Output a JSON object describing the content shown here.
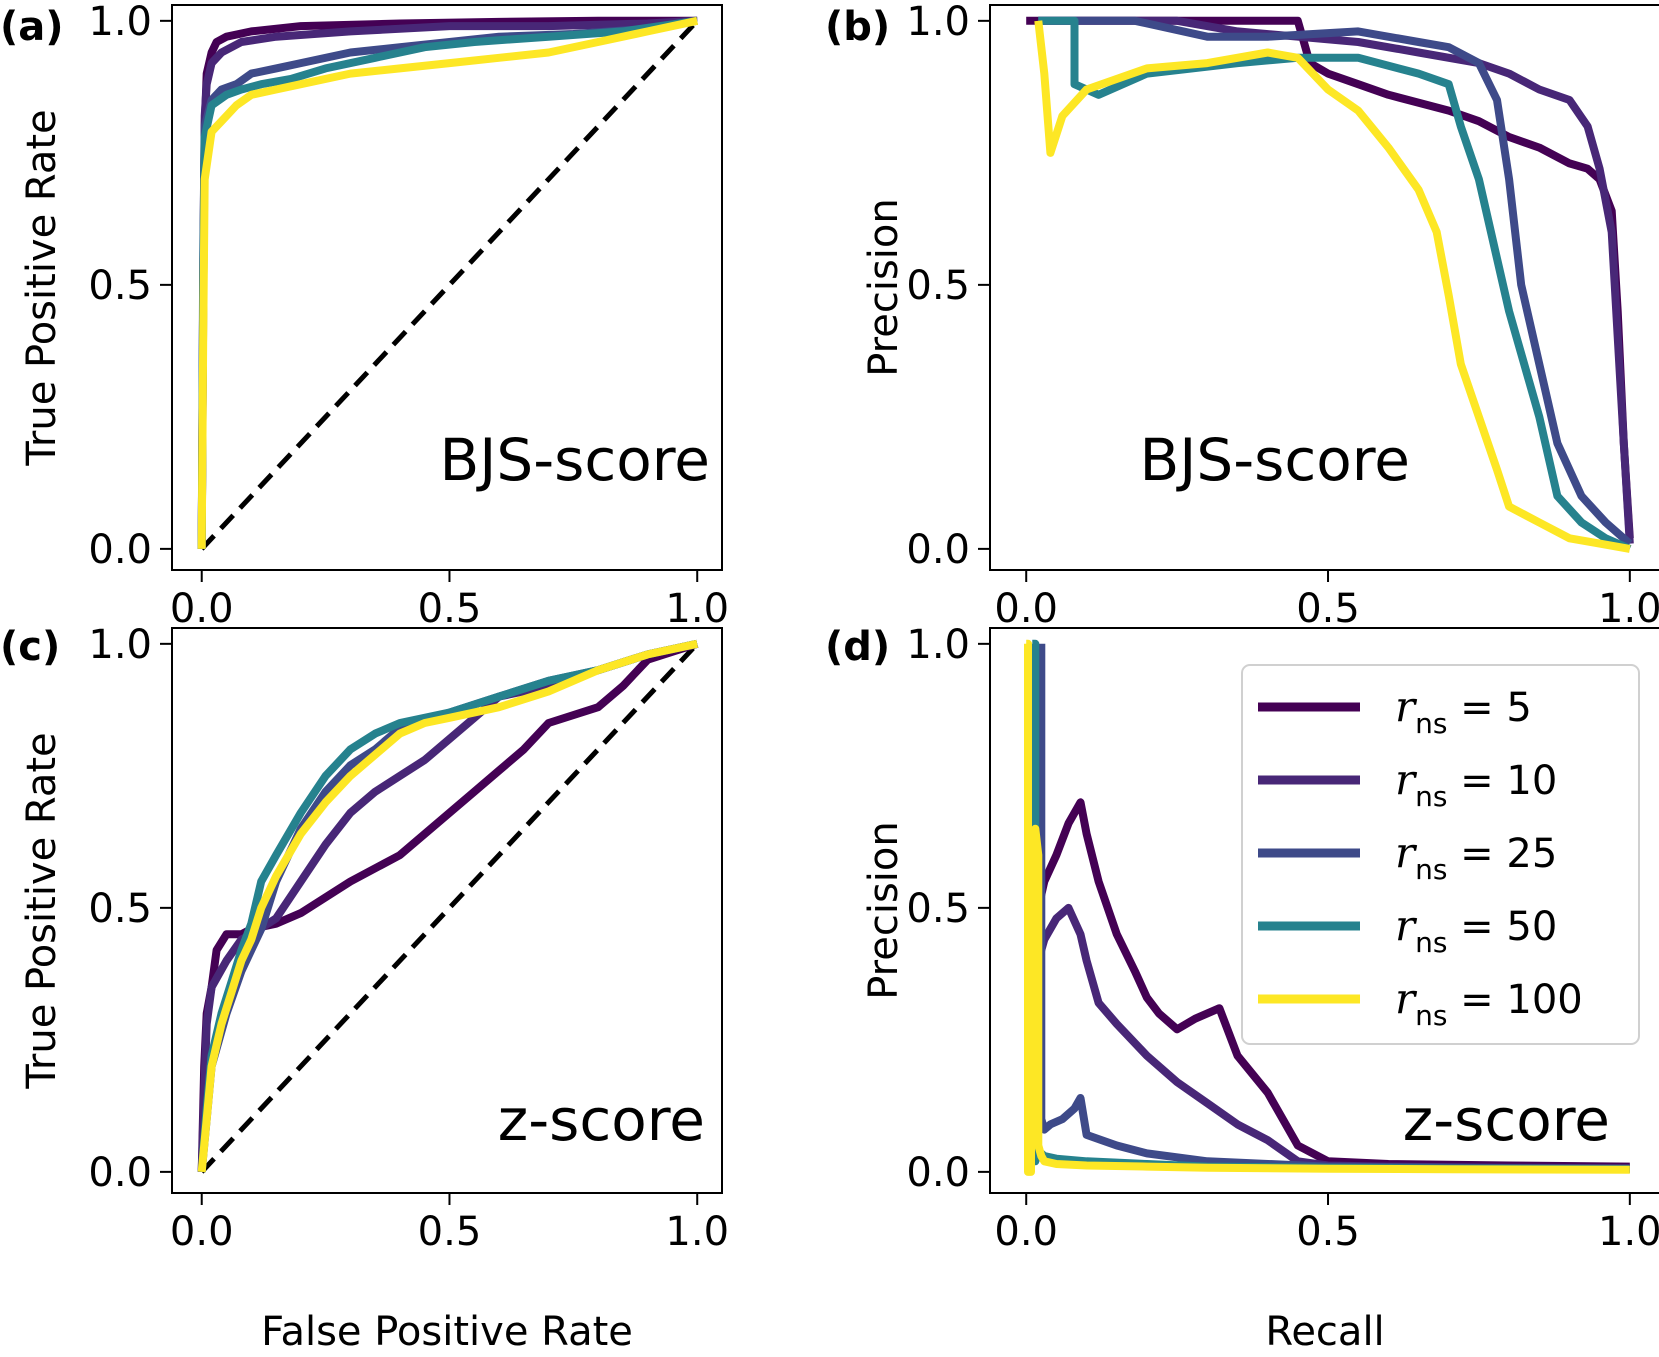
{
  "colors": {
    "r5": "#440154",
    "r10": "#482777",
    "r25": "#3e4a89",
    "r50": "#26828e",
    "r100": "#fde725",
    "diagonal": "#000000"
  },
  "legend": {
    "prefix": "r",
    "subscript": "ns",
    "items": [
      {
        "value": "5",
        "color_key": "r5"
      },
      {
        "value": "10",
        "color_key": "r10"
      },
      {
        "value": "25",
        "color_key": "r25"
      },
      {
        "value": "50",
        "color_key": "r50"
      },
      {
        "value": "100",
        "color_key": "r100"
      }
    ],
    "placement": "upper-right of panel (d)"
  },
  "chart_data": [
    {
      "id": "a",
      "panel_label": "(a)",
      "type": "line",
      "annotation": "BJS-score",
      "xlabel": "",
      "ylabel": "True Positive Rate",
      "xlim": [
        -0.06,
        1.05
      ],
      "ylim": [
        -0.04,
        1.03
      ],
      "xticks": [
        "0.0",
        "0.5",
        "1.0"
      ],
      "yticks": [
        "0.0",
        "0.5",
        "1.0"
      ],
      "diagonal": true,
      "series": [
        {
          "color_key": "r5",
          "x": [
            0,
            0.003,
            0.006,
            0.01,
            0.02,
            0.03,
            0.05,
            0.1,
            0.2,
            0.4,
            0.6,
            0.8,
            1.0
          ],
          "y": [
            0,
            0.45,
            0.8,
            0.9,
            0.94,
            0.96,
            0.97,
            0.98,
            0.99,
            0.995,
            0.998,
            1.0,
            1.0
          ]
        },
        {
          "color_key": "r10",
          "x": [
            0,
            0.003,
            0.006,
            0.01,
            0.02,
            0.04,
            0.08,
            0.15,
            0.3,
            0.5,
            0.7,
            0.9,
            1.0
          ],
          "y": [
            0,
            0.5,
            0.82,
            0.88,
            0.92,
            0.94,
            0.96,
            0.97,
            0.98,
            0.99,
            0.99,
            0.995,
            1.0
          ]
        },
        {
          "color_key": "r25",
          "x": [
            0,
            0.003,
            0.006,
            0.02,
            0.04,
            0.07,
            0.1,
            0.15,
            0.2,
            0.3,
            0.4,
            0.5,
            0.6,
            0.75,
            0.9,
            1.0
          ],
          "y": [
            0,
            0.55,
            0.8,
            0.85,
            0.87,
            0.88,
            0.9,
            0.91,
            0.92,
            0.94,
            0.95,
            0.96,
            0.97,
            0.975,
            0.985,
            1.0
          ]
        },
        {
          "color_key": "r50",
          "x": [
            0,
            0.003,
            0.006,
            0.02,
            0.05,
            0.08,
            0.12,
            0.18,
            0.25,
            0.35,
            0.45,
            0.55,
            0.7,
            0.85,
            1.0
          ],
          "y": [
            0,
            0.5,
            0.78,
            0.84,
            0.86,
            0.87,
            0.88,
            0.89,
            0.91,
            0.93,
            0.95,
            0.96,
            0.97,
            0.98,
            1.0
          ]
        },
        {
          "color_key": "r100",
          "x": [
            0,
            0.003,
            0.006,
            0.02,
            0.04,
            0.07,
            0.1,
            0.15,
            0.2,
            0.3,
            0.4,
            0.5,
            0.6,
            0.7,
            0.8,
            0.9,
            1.0
          ],
          "y": [
            0,
            0.4,
            0.7,
            0.79,
            0.81,
            0.84,
            0.86,
            0.87,
            0.88,
            0.9,
            0.91,
            0.92,
            0.93,
            0.94,
            0.96,
            0.98,
            1.0
          ]
        }
      ]
    },
    {
      "id": "b",
      "panel_label": "(b)",
      "type": "line",
      "annotation": "BJS-score",
      "xlabel": "",
      "ylabel": "Precision",
      "xlim": [
        -0.06,
        1.05
      ],
      "ylim": [
        -0.04,
        1.03
      ],
      "xticks": [
        "0.0",
        "0.5",
        "1.0"
      ],
      "yticks": [
        "0.0",
        "0.5",
        "1.0"
      ],
      "diagonal": false,
      "series": [
        {
          "color_key": "r5",
          "x": [
            0,
            0.45,
            0.47,
            0.5,
            0.55,
            0.6,
            0.7,
            0.75,
            0.8,
            0.85,
            0.9,
            0.93,
            0.95,
            0.97,
            0.98,
            0.99,
            1.0
          ],
          "y": [
            1.0,
            1.0,
            0.92,
            0.9,
            0.88,
            0.86,
            0.83,
            0.81,
            0.78,
            0.76,
            0.73,
            0.72,
            0.7,
            0.64,
            0.45,
            0.2,
            0.02
          ]
        },
        {
          "color_key": "r10",
          "x": [
            0.02,
            0.25,
            0.35,
            0.45,
            0.55,
            0.65,
            0.75,
            0.8,
            0.85,
            0.9,
            0.93,
            0.95,
            0.97,
            0.99,
            1.0
          ],
          "y": [
            1.0,
            1.0,
            0.98,
            0.97,
            0.96,
            0.94,
            0.92,
            0.9,
            0.87,
            0.85,
            0.8,
            0.72,
            0.6,
            0.2,
            0.01
          ]
        },
        {
          "color_key": "r25",
          "x": [
            0.02,
            0.18,
            0.3,
            0.4,
            0.55,
            0.65,
            0.7,
            0.75,
            0.78,
            0.8,
            0.82,
            0.85,
            0.88,
            0.92,
            0.96,
            1.0
          ],
          "y": [
            1.0,
            1.0,
            0.97,
            0.97,
            0.98,
            0.96,
            0.95,
            0.92,
            0.85,
            0.7,
            0.5,
            0.35,
            0.2,
            0.1,
            0.05,
            0.01
          ]
        },
        {
          "color_key": "r50",
          "x": [
            0.02,
            0.08,
            0.08,
            0.12,
            0.2,
            0.35,
            0.45,
            0.55,
            0.65,
            0.7,
            0.72,
            0.75,
            0.78,
            0.8,
            0.85,
            0.88,
            0.92,
            0.96,
            1.0
          ],
          "y": [
            1.0,
            1.0,
            0.88,
            0.86,
            0.9,
            0.92,
            0.93,
            0.93,
            0.9,
            0.88,
            0.8,
            0.7,
            0.55,
            0.45,
            0.25,
            0.1,
            0.05,
            0.02,
            0.0
          ]
        },
        {
          "color_key": "r100",
          "x": [
            0.02,
            0.03,
            0.04,
            0.06,
            0.1,
            0.2,
            0.3,
            0.4,
            0.45,
            0.5,
            0.55,
            0.6,
            0.65,
            0.68,
            0.7,
            0.72,
            0.75,
            0.78,
            0.8,
            0.85,
            0.9,
            0.95,
            1.0
          ],
          "y": [
            1.0,
            0.9,
            0.75,
            0.82,
            0.87,
            0.91,
            0.92,
            0.94,
            0.93,
            0.87,
            0.83,
            0.76,
            0.68,
            0.6,
            0.48,
            0.35,
            0.25,
            0.15,
            0.08,
            0.05,
            0.02,
            0.01,
            0.0
          ]
        }
      ]
    },
    {
      "id": "c",
      "panel_label": "(c)",
      "type": "line",
      "annotation": "z-score",
      "xlabel": "False Positive Rate",
      "ylabel": "True Positive Rate",
      "xlim": [
        -0.06,
        1.05
      ],
      "ylim": [
        -0.04,
        1.03
      ],
      "xticks": [
        "0.0",
        "0.5",
        "1.0"
      ],
      "yticks": [
        "0.0",
        "0.5",
        "1.0"
      ],
      "diagonal": true,
      "series": [
        {
          "color_key": "r5",
          "x": [
            0,
            0.005,
            0.01,
            0.02,
            0.03,
            0.05,
            0.08,
            0.1,
            0.15,
            0.2,
            0.3,
            0.4,
            0.5,
            0.55,
            0.6,
            0.65,
            0.7,
            0.8,
            0.85,
            0.9,
            1.0
          ],
          "y": [
            0,
            0.2,
            0.3,
            0.35,
            0.42,
            0.45,
            0.45,
            0.46,
            0.47,
            0.49,
            0.55,
            0.6,
            0.68,
            0.72,
            0.76,
            0.8,
            0.85,
            0.88,
            0.92,
            0.97,
            1.0
          ]
        },
        {
          "color_key": "r10",
          "x": [
            0,
            0.005,
            0.01,
            0.02,
            0.05,
            0.08,
            0.1,
            0.15,
            0.2,
            0.25,
            0.3,
            0.35,
            0.4,
            0.45,
            0.5,
            0.55,
            0.6,
            0.7,
            0.8,
            0.9,
            1.0
          ],
          "y": [
            0,
            0.15,
            0.28,
            0.35,
            0.4,
            0.44,
            0.45,
            0.48,
            0.55,
            0.62,
            0.68,
            0.72,
            0.75,
            0.78,
            0.82,
            0.86,
            0.9,
            0.92,
            0.95,
            0.98,
            1.0
          ]
        },
        {
          "color_key": "r25",
          "x": [
            0,
            0.01,
            0.02,
            0.05,
            0.08,
            0.1,
            0.12,
            0.15,
            0.2,
            0.25,
            0.3,
            0.35,
            0.4,
            0.5,
            0.6,
            0.7,
            0.8,
            0.9,
            1.0
          ],
          "y": [
            0,
            0.1,
            0.2,
            0.3,
            0.38,
            0.42,
            0.46,
            0.55,
            0.65,
            0.72,
            0.77,
            0.8,
            0.84,
            0.87,
            0.9,
            0.93,
            0.95,
            0.98,
            1.0
          ]
        },
        {
          "color_key": "r50",
          "x": [
            0,
            0.01,
            0.02,
            0.04,
            0.06,
            0.08,
            0.1,
            0.12,
            0.15,
            0.2,
            0.25,
            0.3,
            0.35,
            0.4,
            0.5,
            0.6,
            0.7,
            0.8,
            0.9,
            1.0
          ],
          "y": [
            0,
            0.12,
            0.22,
            0.3,
            0.36,
            0.42,
            0.47,
            0.55,
            0.6,
            0.68,
            0.75,
            0.8,
            0.83,
            0.85,
            0.87,
            0.9,
            0.93,
            0.95,
            0.98,
            1.0
          ]
        },
        {
          "color_key": "r100",
          "x": [
            0,
            0.01,
            0.02,
            0.04,
            0.06,
            0.08,
            0.1,
            0.12,
            0.15,
            0.2,
            0.25,
            0.3,
            0.35,
            0.4,
            0.45,
            0.5,
            0.6,
            0.7,
            0.8,
            0.9,
            1.0
          ],
          "y": [
            0,
            0.1,
            0.2,
            0.28,
            0.34,
            0.4,
            0.44,
            0.5,
            0.56,
            0.64,
            0.7,
            0.75,
            0.79,
            0.83,
            0.85,
            0.86,
            0.88,
            0.91,
            0.95,
            0.98,
            1.0
          ]
        }
      ]
    },
    {
      "id": "d",
      "panel_label": "(d)",
      "type": "line",
      "annotation": "z-score",
      "xlabel": "Recall",
      "ylabel": "Precision",
      "xlim": [
        -0.06,
        1.05
      ],
      "ylim": [
        -0.04,
        1.03
      ],
      "xticks": [
        "0.0",
        "0.5",
        "1.0"
      ],
      "yticks": [
        "0.0",
        "0.5",
        "1.0"
      ],
      "diagonal": false,
      "series": [
        {
          "color_key": "r5",
          "x": [
            0.02,
            0.02,
            0.03,
            0.05,
            0.07,
            0.09,
            0.1,
            0.12,
            0.15,
            0.18,
            0.2,
            0.22,
            0.25,
            0.28,
            0.32,
            0.35,
            0.4,
            0.45,
            0.5,
            0.6,
            0.8,
            1.0
          ],
          "y": [
            0.35,
            0.5,
            0.55,
            0.6,
            0.66,
            0.7,
            0.64,
            0.55,
            0.45,
            0.38,
            0.33,
            0.3,
            0.27,
            0.29,
            0.31,
            0.22,
            0.15,
            0.05,
            0.02,
            0.015,
            0.012,
            0.01
          ]
        },
        {
          "color_key": "r10",
          "x": [
            0.02,
            0.02,
            0.03,
            0.05,
            0.07,
            0.09,
            0.1,
            0.12,
            0.15,
            0.2,
            0.25,
            0.3,
            0.35,
            0.4,
            0.45,
            0.5,
            0.6,
            0.8,
            1.0
          ],
          "y": [
            0.3,
            0.4,
            0.44,
            0.48,
            0.5,
            0.45,
            0.4,
            0.32,
            0.28,
            0.22,
            0.17,
            0.13,
            0.09,
            0.06,
            0.02,
            0.012,
            0.01,
            0.008,
            0.007
          ]
        },
        {
          "color_key": "r25",
          "x": [
            0.025,
            0.025,
            0.03,
            0.04,
            0.06,
            0.08,
            0.09,
            0.1,
            0.15,
            0.2,
            0.3,
            0.5,
            0.7,
            1.0
          ],
          "y": [
            1.0,
            0.1,
            0.08,
            0.09,
            0.1,
            0.12,
            0.14,
            0.07,
            0.05,
            0.035,
            0.02,
            0.01,
            0.008,
            0.006
          ]
        },
        {
          "color_key": "r50",
          "x": [
            0.01,
            0.015,
            0.015,
            0.02,
            0.03,
            0.05,
            0.1,
            0.2,
            0.3,
            0.5,
            0.7,
            1.0
          ],
          "y": [
            1.0,
            1.0,
            0.02,
            0.04,
            0.03,
            0.025,
            0.02,
            0.015,
            0.01,
            0.008,
            0.006,
            0.005
          ]
        },
        {
          "color_key": "r100",
          "x": [
            0.0,
            0.003,
            0.003,
            0.008,
            0.008,
            0.015,
            0.015,
            0.02,
            0.02,
            0.025,
            0.03,
            0.05,
            0.1,
            0.2,
            0.3,
            0.5,
            0.7,
            1.0
          ],
          "y": [
            1.0,
            1.0,
            0.0,
            0.0,
            0.4,
            0.4,
            0.65,
            0.6,
            0.05,
            0.03,
            0.02,
            0.015,
            0.012,
            0.01,
            0.008,
            0.006,
            0.005,
            0.004
          ]
        }
      ]
    }
  ]
}
